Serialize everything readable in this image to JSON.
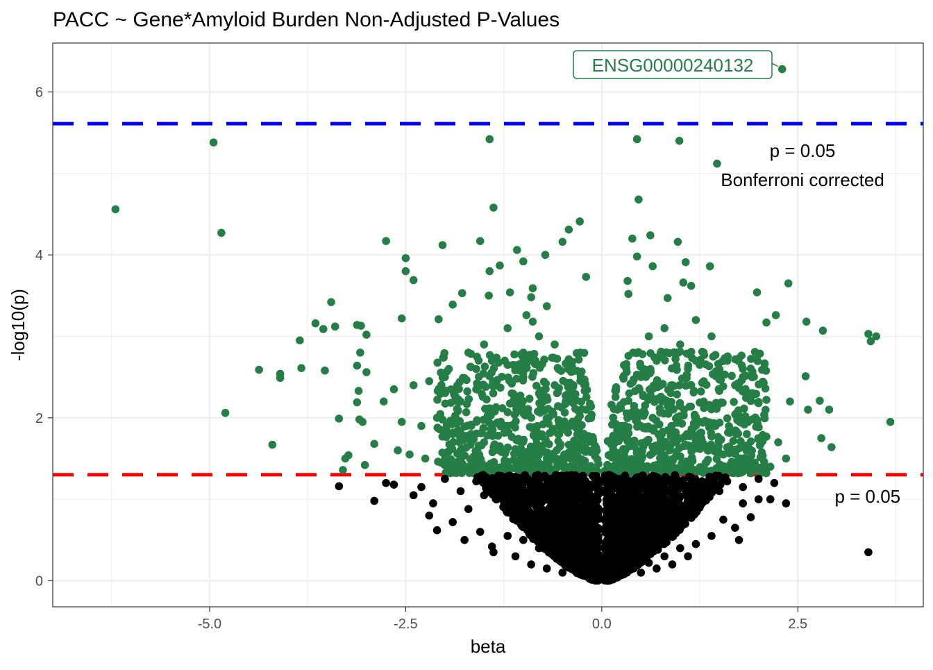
{
  "chart_data": {
    "type": "scatter",
    "title": "PACC ~ Gene*Amyloid Burden Non-Adjusted P-Values",
    "xlabel": "beta",
    "ylabel": "-log10(p)",
    "xlim": [
      -7.0,
      4.1
    ],
    "ylim": [
      -0.32,
      6.6
    ],
    "x_ticks": [
      -5.0,
      -2.5,
      0.0,
      2.5
    ],
    "x_tick_labels": [
      "-5.0",
      "-2.5",
      "0.0",
      "2.5"
    ],
    "y_ticks": [
      0,
      2,
      4,
      6
    ],
    "y_tick_labels": [
      "0",
      "2",
      "4",
      "6"
    ],
    "grid": true,
    "colors": {
      "significant": "#267E47",
      "nonsignificant": "#000000",
      "bonferroni_line": "#0000FF",
      "nominal_line": "#FF0000",
      "grid": "#EBEBEB"
    },
    "reference_lines": [
      {
        "y": 5.61,
        "color": "#0000FF",
        "style": "dashed",
        "label_lines": [
          "p = 0.05",
          "Bonferroni corrected"
        ]
      },
      {
        "y": 1.301,
        "color": "#FF0000",
        "style": "dashed",
        "label_lines": [
          "p = 0.05"
        ]
      }
    ],
    "highlighted_point": {
      "label": "ENSG00000240132",
      "x": 2.3,
      "y": 6.28
    },
    "series": [
      {
        "color": "#267E47",
        "points": [
          [
            2.3,
            6.28
          ],
          [
            -4.95,
            5.38
          ],
          [
            -1.43,
            5.42
          ],
          [
            0.45,
            5.42
          ],
          [
            0.99,
            5.4
          ],
          [
            1.47,
            5.12
          ],
          [
            -6.2,
            4.56
          ],
          [
            -1.38,
            4.58
          ],
          [
            0.47,
            4.68
          ],
          [
            -4.85,
            4.27
          ],
          [
            -2.75,
            4.17
          ],
          [
            -2.03,
            4.12
          ],
          [
            -1.55,
            4.17
          ],
          [
            -0.28,
            4.41
          ],
          [
            -0.42,
            4.31
          ],
          [
            -0.5,
            4.16
          ],
          [
            0.39,
            4.2
          ],
          [
            0.62,
            4.24
          ],
          [
            0.97,
            4.16
          ],
          [
            -0.72,
            4.0
          ],
          [
            -1.08,
            4.06
          ],
          [
            -2.5,
            3.96
          ],
          [
            -2.5,
            3.8
          ],
          [
            -1.3,
            3.87
          ],
          [
            -1.43,
            3.8
          ],
          [
            -2.4,
            3.69
          ],
          [
            -1.0,
            3.92
          ],
          [
            0.45,
            3.98
          ],
          [
            0.65,
            3.86
          ],
          [
            1.07,
            3.91
          ],
          [
            1.38,
            3.86
          ],
          [
            -0.2,
            3.73
          ],
          [
            0.33,
            3.68
          ],
          [
            1.04,
            3.66
          ],
          [
            1.14,
            3.62
          ],
          [
            2.38,
            3.65
          ],
          [
            1.98,
            3.54
          ],
          [
            -0.88,
            3.59
          ],
          [
            -1.17,
            3.54
          ],
          [
            -1.78,
            3.53
          ],
          [
            -1.44,
            3.5
          ],
          [
            -0.9,
            3.48
          ],
          [
            0.34,
            3.52
          ],
          [
            0.84,
            3.47
          ],
          [
            -3.45,
            3.42
          ],
          [
            -1.9,
            3.39
          ],
          [
            -0.7,
            3.37
          ],
          [
            -3.65,
            3.16
          ],
          [
            -3.55,
            3.09
          ],
          [
            -3.4,
            3.12
          ],
          [
            -3.07,
            3.13
          ],
          [
            -3.12,
            3.14
          ],
          [
            -2.55,
            3.22
          ],
          [
            -2.08,
            3.21
          ],
          [
            -0.96,
            3.26
          ],
          [
            -0.88,
            3.18
          ],
          [
            2.22,
            3.26
          ],
          [
            2.1,
            3.17
          ],
          [
            2.61,
            3.18
          ],
          [
            2.82,
            3.07
          ],
          [
            3.4,
            3.03
          ],
          [
            3.5,
            3.0
          ],
          [
            3.43,
            2.94
          ],
          [
            -3.85,
            2.95
          ],
          [
            -3.0,
            3.02
          ],
          [
            -4.37,
            2.59
          ],
          [
            -4.1,
            2.49
          ],
          [
            -4.1,
            2.54
          ],
          [
            -3.83,
            2.61
          ],
          [
            -3.53,
            2.58
          ],
          [
            -3.08,
            2.8
          ],
          [
            -3.12,
            2.64
          ],
          [
            -3.0,
            2.56
          ],
          [
            -3.1,
            2.33
          ],
          [
            -3.12,
            2.19
          ],
          [
            -4.8,
            2.06
          ],
          [
            -3.35,
            1.99
          ],
          [
            -3.09,
            1.98
          ],
          [
            -3.05,
            1.95
          ],
          [
            -2.9,
            1.68
          ],
          [
            -4.2,
            1.67
          ],
          [
            -3.27,
            1.5
          ],
          [
            -3.23,
            1.54
          ],
          [
            -3.02,
            1.42
          ],
          [
            -3.3,
            1.36
          ],
          [
            2.6,
            2.51
          ],
          [
            2.63,
            2.1
          ],
          [
            2.9,
            2.1
          ],
          [
            3.68,
            1.95
          ],
          [
            2.8,
            1.75
          ],
          [
            2.93,
            1.64
          ],
          [
            2.35,
            1.5
          ],
          [
            2.78,
            2.21
          ],
          [
            2.4,
            2.2
          ],
          [
            2.1,
            2.22
          ],
          [
            2.0,
            2.18
          ],
          [
            -2.78,
            2.2
          ],
          [
            -2.65,
            2.35
          ],
          [
            -2.55,
            1.95
          ],
          [
            -2.4,
            2.4
          ],
          [
            -2.2,
            2.45
          ],
          [
            -1.95,
            2.6
          ],
          [
            -1.7,
            2.8
          ],
          [
            -1.5,
            2.9
          ],
          [
            -1.2,
            2.65
          ],
          [
            -1.0,
            2.5
          ],
          [
            -0.8,
            2.3
          ],
          [
            -0.6,
            2.4
          ],
          [
            -0.4,
            2.2
          ],
          [
            -0.2,
            2.1
          ],
          [
            -1.8,
            2.2
          ],
          [
            -1.6,
            2.35
          ],
          [
            -1.4,
            2.1
          ],
          [
            -1.1,
            2.05
          ],
          [
            -0.9,
            2.0
          ],
          [
            -0.7,
            1.95
          ],
          [
            -0.5,
            1.9
          ],
          [
            -0.3,
            1.85
          ],
          [
            -2.3,
            1.9
          ],
          [
            -2.1,
            2.0
          ],
          [
            -1.9,
            1.8
          ],
          [
            -1.7,
            1.75
          ],
          [
            -1.5,
            1.7
          ],
          [
            -1.3,
            1.65
          ],
          [
            -1.1,
            1.6
          ],
          [
            -0.9,
            1.55
          ],
          [
            -0.7,
            1.5
          ],
          [
            -0.5,
            1.45
          ],
          [
            -0.3,
            1.4
          ],
          [
            -0.15,
            1.35
          ],
          [
            -2.6,
            1.6
          ],
          [
            -2.45,
            1.55
          ],
          [
            -2.25,
            1.5
          ],
          [
            -2.05,
            1.45
          ],
          [
            -1.85,
            1.42
          ],
          [
            -1.65,
            1.4
          ],
          [
            -1.45,
            1.38
          ],
          [
            -1.25,
            1.36
          ],
          [
            -1.05,
            1.34
          ],
          [
            -0.85,
            1.33
          ],
          [
            -0.65,
            1.32
          ],
          [
            -0.45,
            1.32
          ],
          [
            0.2,
            2.1
          ],
          [
            0.35,
            2.3
          ],
          [
            0.5,
            2.5
          ],
          [
            0.7,
            2.7
          ],
          [
            0.9,
            2.4
          ],
          [
            1.1,
            2.6
          ],
          [
            1.3,
            2.8
          ],
          [
            1.5,
            2.55
          ],
          [
            1.7,
            2.4
          ],
          [
            1.9,
            2.3
          ],
          [
            0.25,
            1.9
          ],
          [
            0.45,
            1.95
          ],
          [
            0.65,
            2.0
          ],
          [
            0.85,
            2.05
          ],
          [
            1.05,
            2.1
          ],
          [
            1.25,
            1.95
          ],
          [
            1.45,
            1.9
          ],
          [
            1.65,
            1.85
          ],
          [
            1.85,
            1.8
          ],
          [
            2.05,
            1.75
          ],
          [
            2.25,
            1.7
          ],
          [
            0.15,
            1.6
          ],
          [
            0.35,
            1.65
          ],
          [
            0.55,
            1.7
          ],
          [
            0.75,
            1.75
          ],
          [
            0.95,
            1.7
          ],
          [
            1.15,
            1.65
          ],
          [
            1.35,
            1.6
          ],
          [
            1.55,
            1.55
          ],
          [
            1.75,
            1.5
          ],
          [
            1.95,
            1.45
          ],
          [
            2.15,
            1.4
          ],
          [
            0.12,
            1.35
          ],
          [
            0.3,
            1.38
          ],
          [
            0.5,
            1.4
          ],
          [
            0.7,
            1.42
          ],
          [
            0.9,
            1.4
          ],
          [
            1.1,
            1.38
          ],
          [
            1.3,
            1.36
          ],
          [
            1.5,
            1.34
          ],
          [
            1.7,
            1.33
          ],
          [
            1.9,
            1.32
          ],
          [
            0.6,
            3.0
          ],
          [
            0.8,
            3.1
          ],
          [
            1.0,
            2.9
          ],
          [
            1.2,
            3.2
          ],
          [
            1.4,
            3.0
          ],
          [
            0.4,
            2.8
          ],
          [
            1.6,
            2.7
          ],
          [
            1.8,
            2.6
          ],
          [
            -0.6,
            2.9
          ],
          [
            -0.8,
            3.0
          ],
          [
            -1.0,
            2.8
          ],
          [
            -1.2,
            3.1
          ],
          [
            -1.4,
            2.7
          ],
          [
            -1.6,
            2.6
          ],
          [
            -2.0,
            2.5
          ]
        ]
      },
      {
        "color": "#000000",
        "points": [
          [
            -3.35,
            1.16
          ],
          [
            -2.9,
            0.98
          ],
          [
            -2.75,
            1.2
          ],
          [
            -2.65,
            1.18
          ],
          [
            -2.3,
            1.15
          ],
          [
            -2.2,
            0.8
          ],
          [
            -2.15,
            0.95
          ],
          [
            -2.1,
            0.62
          ],
          [
            -1.9,
            0.72
          ],
          [
            -1.7,
            0.88
          ],
          [
            -1.55,
            0.6
          ],
          [
            -1.4,
            0.42
          ],
          [
            -1.38,
            0.35
          ],
          [
            -1.2,
            0.55
          ],
          [
            -1.0,
            0.5
          ],
          [
            -0.8,
            0.4
          ],
          [
            -0.6,
            0.3
          ],
          [
            -0.4,
            0.2
          ],
          [
            -0.2,
            0.1
          ],
          [
            -0.1,
            0.05
          ],
          [
            3.4,
            0.35
          ],
          [
            2.2,
            1.2
          ],
          [
            2.15,
            1.0
          ],
          [
            2.0,
            1.0
          ],
          [
            1.9,
            0.78
          ],
          [
            1.8,
            0.95
          ],
          [
            1.7,
            0.65
          ],
          [
            1.55,
            0.75
          ],
          [
            1.4,
            0.55
          ],
          [
            1.2,
            0.45
          ],
          [
            1.0,
            0.4
          ],
          [
            0.8,
            0.3
          ],
          [
            0.6,
            0.22
          ],
          [
            0.4,
            0.15
          ],
          [
            0.2,
            0.08
          ],
          [
            0.05,
            0.02
          ],
          [
            -1.8,
            1.1
          ],
          [
            -1.5,
            1.05
          ],
          [
            -1.2,
            1.0
          ],
          [
            -0.9,
            0.95
          ],
          [
            -0.6,
            0.9
          ],
          [
            -0.3,
            0.85
          ],
          [
            0.3,
            0.9
          ],
          [
            0.6,
            0.95
          ],
          [
            0.9,
            1.0
          ],
          [
            1.2,
            1.05
          ],
          [
            1.5,
            1.1
          ],
          [
            1.8,
            1.15
          ],
          [
            -2.0,
            1.25
          ],
          [
            -1.6,
            1.22
          ],
          [
            -1.2,
            1.2
          ],
          [
            -0.8,
            1.18
          ],
          [
            -0.4,
            1.15
          ],
          [
            0.4,
            1.15
          ],
          [
            0.8,
            1.18
          ],
          [
            1.2,
            1.2
          ],
          [
            1.6,
            1.22
          ],
          [
            2.0,
            1.25
          ],
          [
            -1.1,
            0.3
          ],
          [
            -0.9,
            0.2
          ],
          [
            -0.7,
            0.15
          ],
          [
            -0.5,
            0.1
          ],
          [
            0.5,
            0.1
          ],
          [
            0.7,
            0.15
          ],
          [
            0.9,
            0.2
          ],
          [
            1.1,
            0.3
          ],
          [
            -1.75,
            0.5
          ],
          [
            1.75,
            0.5
          ],
          [
            -2.4,
            1.05
          ],
          [
            2.35,
            0.95
          ]
        ]
      }
    ]
  }
}
